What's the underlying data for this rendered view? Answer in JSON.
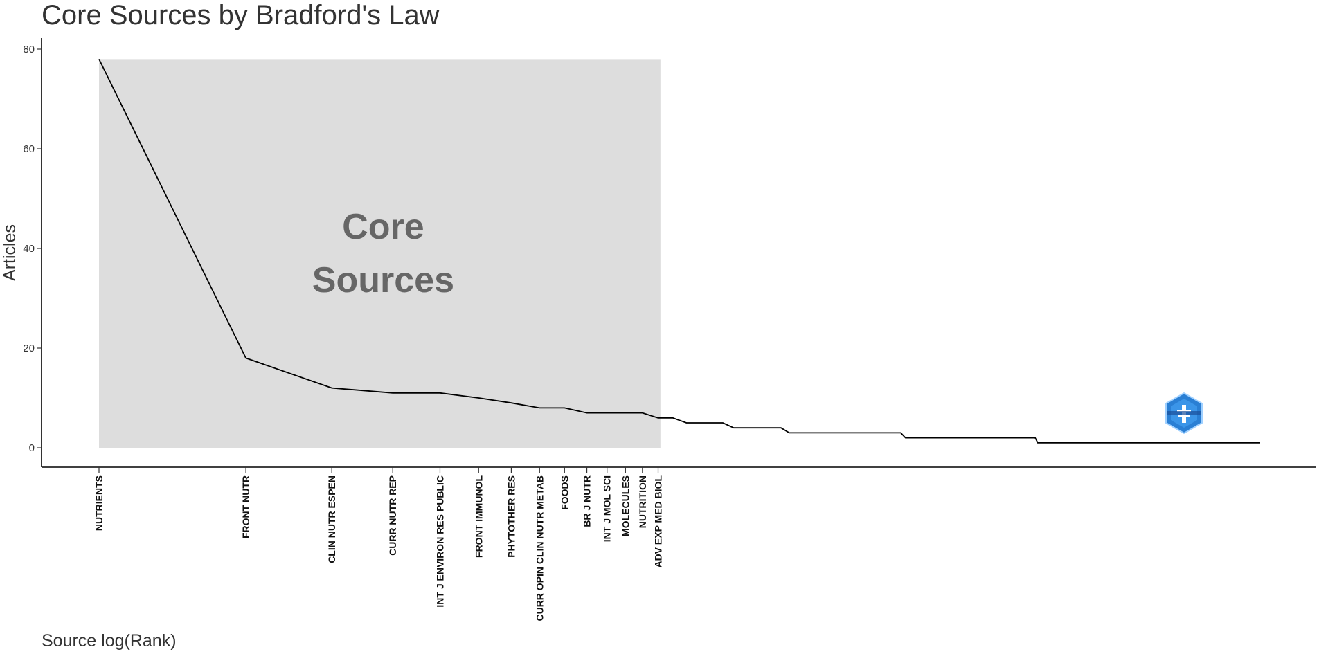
{
  "chart_data": {
    "type": "line",
    "title": "Core Sources by Bradford's Law",
    "xlabel": "Source log(Rank)",
    "ylabel": "Articles",
    "ylim": [
      0,
      80
    ],
    "yticks": [
      0,
      20,
      40,
      60,
      80
    ],
    "grid": false,
    "x_scale": "log",
    "core_zone_label": [
      "Core",
      "Sources"
    ],
    "core_zone": {
      "rank_from": 1,
      "rank_to": 13,
      "articles_max": 78
    },
    "tick_sources": [
      {
        "rank": 1,
        "name": "NUTRIENTS"
      },
      {
        "rank": 2,
        "name": "FRONT NUTR"
      },
      {
        "rank": 3,
        "name": "CLIN NUTR ESPEN"
      },
      {
        "rank": 4,
        "name": "CURR NUTR REP"
      },
      {
        "rank": 5,
        "name": "INT J ENVIRON RES PUBLIC"
      },
      {
        "rank": 6,
        "name": "FRONT IMMUNOL"
      },
      {
        "rank": 7,
        "name": "PHYTOTHER RES"
      },
      {
        "rank": 8,
        "name": "CURR OPIN CLIN NUTR METAB"
      },
      {
        "rank": 9,
        "name": "FOODS"
      },
      {
        "rank": 10,
        "name": "BR J NUTR"
      },
      {
        "rank": 11,
        "name": "INT J MOL SCI"
      },
      {
        "rank": 12,
        "name": "MOLECULES"
      },
      {
        "rank": 13,
        "name": "NUTRITION"
      },
      {
        "rank": 14,
        "name": "ADV EXP MED BIOL"
      }
    ],
    "series": [
      {
        "x": [
          1,
          2,
          3,
          4,
          5,
          6,
          7,
          8,
          9,
          10,
          11,
          12,
          13,
          14,
          15,
          16,
          19,
          20,
          25,
          26,
          44,
          45,
          83,
          84,
          240
        ],
        "values": [
          78,
          18,
          12,
          11,
          11,
          10,
          9,
          8,
          8,
          7,
          7,
          7,
          7,
          6,
          6,
          5,
          5,
          4,
          4,
          3,
          3,
          2,
          2,
          1,
          1
        ]
      }
    ],
    "colors": {
      "line": "#000000",
      "core_fill": "#dddddd",
      "core_text": "#666666",
      "logo": "#2a7fd4"
    }
  }
}
